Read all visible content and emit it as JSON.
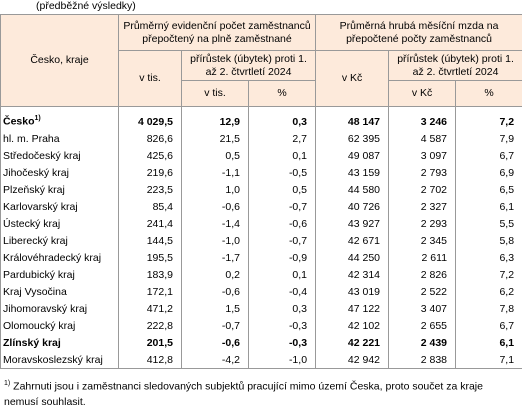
{
  "caption": "(předběžné výsledky)",
  "header": {
    "region": "Česko, kraje",
    "employees": "Průměrný evidenční počet zaměstnanců přepočtený na plně zaměstnané",
    "wages": "Průměrná hrubá měsíční mzda na přepočtené počty zaměstnanců",
    "emp_unit": "v tis.",
    "emp_change": "přírůstek (úbytek) proti 1. až 2. čtvrtletí 2024",
    "wage_unit": "v Kč",
    "wage_change": "přírůstek (úbytek) proti 1. až 2. čtvrtletí 2024",
    "emp_change_unit": "v tis.",
    "emp_pct": "%",
    "wage_change_unit": "v Kč",
    "wage_pct": "%"
  },
  "rows": [
    {
      "name": "Česko",
      "note": "1)",
      "bold": true,
      "cells": [
        "4 029,5",
        "12,9",
        "0,3",
        "48 147",
        "3 246",
        "7,2"
      ]
    },
    {
      "name": "hl. m. Praha",
      "cells": [
        "826,6",
        "21,5",
        "2,7",
        "62 395",
        "4 587",
        "7,9"
      ]
    },
    {
      "name": "Středočeský kraj",
      "cells": [
        "425,6",
        "0,5",
        "0,1",
        "49 087",
        "3 097",
        "6,7"
      ]
    },
    {
      "name": "Jihočeský kraj",
      "cells": [
        "219,6",
        "-1,1",
        "-0,5",
        "43 159",
        "2 793",
        "6,9"
      ]
    },
    {
      "name": "Plzeňský kraj",
      "cells": [
        "223,5",
        "1,0",
        "0,5",
        "44 580",
        "2 702",
        "6,5"
      ]
    },
    {
      "name": "Karlovarský kraj",
      "cells": [
        "85,4",
        "-0,6",
        "-0,7",
        "40 726",
        "2 327",
        "6,1"
      ]
    },
    {
      "name": "Ústecký kraj",
      "cells": [
        "241,4",
        "-1,4",
        "-0,6",
        "43 927",
        "2 293",
        "5,5"
      ]
    },
    {
      "name": "Liberecký kraj",
      "cells": [
        "144,5",
        "-1,0",
        "-0,7",
        "42 671",
        "2 345",
        "5,8"
      ]
    },
    {
      "name": "Královéhradecký kraj",
      "cells": [
        "195,5",
        "-1,7",
        "-0,9",
        "44 250",
        "2 611",
        "6,3"
      ]
    },
    {
      "name": "Pardubický kraj",
      "cells": [
        "183,9",
        "0,2",
        "0,1",
        "42 314",
        "2 826",
        "7,2"
      ]
    },
    {
      "name": "Kraj Vysočina",
      "cells": [
        "172,1",
        "-0,6",
        "-0,4",
        "43 019",
        "2 522",
        "6,2"
      ]
    },
    {
      "name": "Jihomoravský kraj",
      "cells": [
        "471,2",
        "1,5",
        "0,3",
        "47 122",
        "3 407",
        "7,8"
      ]
    },
    {
      "name": "Olomoucký kraj",
      "cells": [
        "222,8",
        "-0,7",
        "-0,3",
        "42 102",
        "2 655",
        "6,7"
      ]
    },
    {
      "name": "Zlínský kraj",
      "bold": true,
      "cells": [
        "201,5",
        "-0,6",
        "-0,3",
        "42 221",
        "2 439",
        "6,1"
      ]
    },
    {
      "name": "Moravskoslezský kraj",
      "cells": [
        "412,8",
        "-4,2",
        "-1,0",
        "42 942",
        "2 838",
        "7,1"
      ]
    }
  ],
  "footnote": {
    "mark": "1)",
    "text": "Zahrnuti jsou i zaměstnanci sledovaných subjektů pracující mimo území Česka, proto součet za kraje nemusí souhlasit."
  }
}
